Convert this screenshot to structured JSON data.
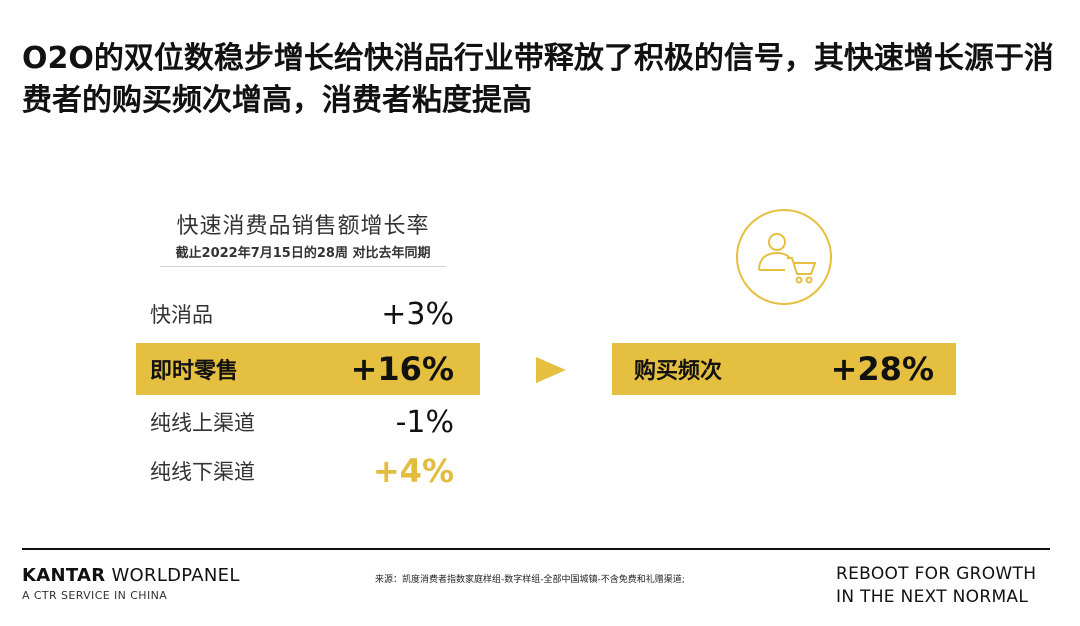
{
  "headline": "O2O的双位数稳步增长给快消品行业带释放了积极的信号，其快速增长源于消费者的购买频次增高，消费者粘度提高",
  "table": {
    "title": "快速消费品销售额增长率",
    "subtitle": "截止2022年7月15日的28周 对比去年同期",
    "rows": [
      {
        "label": "快消品",
        "value": "+3%"
      },
      {
        "label": "即时零售",
        "value": "+16%"
      },
      {
        "label": "纯线上渠道",
        "value": "-1%"
      },
      {
        "label": "纯线下渠道",
        "value": "+4%"
      }
    ]
  },
  "metric": {
    "label": "购买频次",
    "value": "+28%"
  },
  "icons": {
    "arrow": "right-triangle-arrow-icon",
    "shopper": "shopper-cart-icon"
  },
  "colors": {
    "accent": "#e5bf3f",
    "text": "#111111"
  },
  "footer": {
    "brand_bold": "KANTAR",
    "brand_rest": " WORLDPANEL",
    "brand_sub": "A CTR SERVICE IN CHINA",
    "source": "来源：凯度消费者指数家庭样组-数字样组-全部中国城镇-不含免费和礼赠渠道;",
    "tagline_line1": "REBOOT FOR GROWTH",
    "tagline_line2": "IN THE NEXT NORMAL"
  }
}
